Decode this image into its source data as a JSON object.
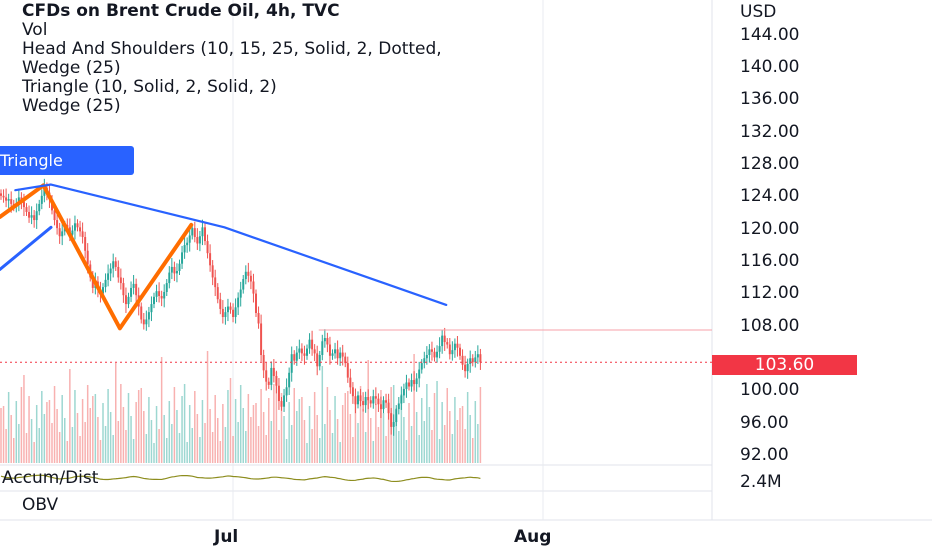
{
  "legend": {
    "title": "CFDs on Brent Crude Oil, 4h, TVC",
    "line2": "Vol",
    "line3": "Head And Shoulders (10, 15, 25, Solid, 2, Dotted,",
    "line4": "Wedge (25)",
    "line5": "Triangle (10, Solid, 2, Solid, 2)",
    "line6": "Wedge (25)"
  },
  "pattern_label": "Triangle",
  "currency": "USD",
  "last_price": "103.60",
  "indicators": {
    "ad_label": "Accum/Dist",
    "ad_value": "2.4M",
    "obv_label": "OBV"
  },
  "colors": {
    "up": "#26a69a",
    "down": "#ef5350",
    "trend": "#2962ff",
    "pattern": "#ff6d00",
    "ad_line": "#8d8d1e",
    "price_tag": "#f23645"
  },
  "chart_data": {
    "type": "candlestick",
    "y_ticks": [
      "144.00",
      "140.00",
      "136.00",
      "132.00",
      "128.00",
      "124.00",
      "120.00",
      "116.00",
      "112.00",
      "108.00",
      "100.00",
      "96.00",
      "92.00"
    ],
    "x_ticks": [
      "Jul",
      "Aug"
    ],
    "ylim": [
      91,
      147
    ],
    "closes": [
      124.2,
      124,
      123.6,
      123.8,
      123.2,
      122.8,
      123.1,
      124,
      123.5,
      122.8,
      122.2,
      121.5,
      121.8,
      121.2,
      122.3,
      123.2,
      124.2,
      125.2,
      124.6,
      123.8,
      122.4,
      121.2,
      120.2,
      119.2,
      119.8,
      120.6,
      120.3,
      119.4,
      119.9,
      120.8,
      120.3,
      119.8,
      119.1,
      117.4,
      115.7,
      114.1,
      112.8,
      113.6,
      112.6,
      112.1,
      112.9,
      113.8,
      114.6,
      115.2,
      116.1,
      115.4,
      114.1,
      113.4,
      111.9,
      110.8,
      111.7,
      112.8,
      113.3,
      111.9,
      110.5,
      108.9,
      108.3,
      108.9,
      109.8,
      110.8,
      111.7,
      112.4,
      111.8,
      111.5,
      112.3,
      113.4,
      114.7,
      115.4,
      114.6,
      114.9,
      115.8,
      117.2,
      118.1,
      118.4,
      119.3,
      120.2,
      119.1,
      118.3,
      119.2,
      120.3,
      118.6,
      117.1,
      115.6,
      114.1,
      112.9,
      111.4,
      110.2,
      109.2,
      109.8,
      110.5,
      110.1,
      109.2,
      110.4,
      111.6,
      112.6,
      113.9,
      114.8,
      114.3,
      113.6,
      112.1,
      109.7,
      108.4,
      104.5,
      102.6,
      101.2,
      100.8,
      102.9,
      101.9,
      100.7,
      98.8,
      98.1,
      99.5,
      100.5,
      102.3,
      104.6,
      103.8,
      104.8,
      105.3,
      104.7,
      104.4,
      105.3,
      106.4,
      105.2,
      104.7,
      103.1,
      104.5,
      106.2,
      106.6,
      105.8,
      104.4,
      104.7,
      105.2,
      104.1,
      104.8,
      104.3,
      103.5,
      101.7,
      100.5,
      99.4,
      98.4,
      99.5,
      98.8,
      98.3,
      99.3,
      98.9,
      98.5,
      99.4,
      99.1,
      98.4,
      97.8,
      98.9,
      98.6,
      97.3,
      95.6,
      96.2,
      97.8,
      98.5,
      99.5,
      100.3,
      101.1,
      100.6,
      101.4,
      100.9,
      101.6,
      102.7,
      103.5,
      104.1,
      104.5,
      105.2,
      104.9,
      104.2,
      104.9,
      105.6,
      106.9,
      106.1,
      105.8,
      104.6,
      105.1,
      105.9,
      105.4,
      104.4,
      103.3,
      102.5,
      103.4,
      104.1,
      103.6,
      104.2,
      104.6,
      103.6
    ],
    "triangle_upper": [
      [
        6,
        124.9
      ],
      [
        20,
        125.6
      ],
      [
        88,
        120.3
      ],
      [
        175,
        110.7
      ]
    ],
    "triangle_lower": [
      [
        0,
        115.1
      ],
      [
        20,
        120.3
      ]
    ],
    "head_shoulders": [
      [
        0,
        121.6
      ],
      [
        17,
        125.5
      ],
      [
        47,
        107.8
      ],
      [
        75,
        120.6
      ]
    ],
    "resistance": 107.6
  }
}
